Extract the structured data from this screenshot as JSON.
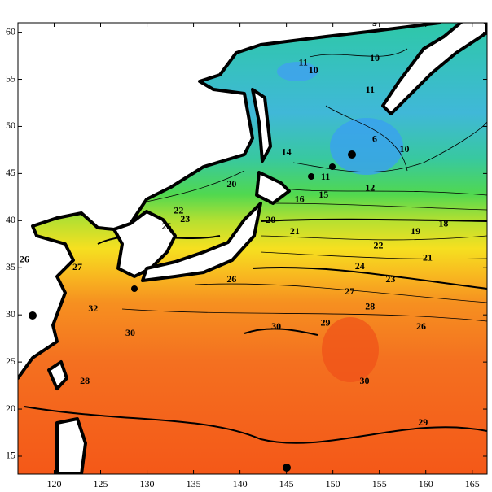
{
  "chart_data": {
    "type": "contour",
    "xlim": [
      116.1,
      166.6
    ],
    "ylim": [
      13.1,
      61
    ],
    "xticks": [
      120,
      125,
      130,
      135,
      140,
      145,
      150,
      155,
      160,
      165
    ],
    "yticks": [
      15,
      20,
      25,
      30,
      35,
      40,
      45,
      50,
      55,
      60
    ],
    "contour_labels": [
      {
        "value": 9,
        "lon": 154.5,
        "lat": 60.9
      },
      {
        "value": 10,
        "lon": 154.5,
        "lat": 57.2
      },
      {
        "value": 11,
        "lon": 146.8,
        "lat": 56.7
      },
      {
        "value": 10,
        "lon": 147.9,
        "lat": 55.9
      },
      {
        "value": 11,
        "lon": 154.0,
        "lat": 53.8
      },
      {
        "value": 6,
        "lon": 154.5,
        "lat": 48.6
      },
      {
        "value": 10,
        "lon": 157.7,
        "lat": 47.5
      },
      {
        "value": 14,
        "lon": 145.0,
        "lat": 47.2
      },
      {
        "value": 20,
        "lon": 139.1,
        "lat": 43.8
      },
      {
        "value": 11,
        "lon": 149.2,
        "lat": 44.6
      },
      {
        "value": 12,
        "lon": 154.0,
        "lat": 43.4
      },
      {
        "value": 16,
        "lon": 146.4,
        "lat": 42.2
      },
      {
        "value": 15,
        "lon": 149.0,
        "lat": 42.7
      },
      {
        "value": 22,
        "lon": 133.4,
        "lat": 41.0
      },
      {
        "value": 23,
        "lon": 134.1,
        "lat": 40.1
      },
      {
        "value": 25,
        "lon": 132.1,
        "lat": 39.3
      },
      {
        "value": 20,
        "lon": 143.3,
        "lat": 40.0
      },
      {
        "value": 21,
        "lon": 145.9,
        "lat": 38.8
      },
      {
        "value": 18,
        "lon": 161.9,
        "lat": 39.6
      },
      {
        "value": 19,
        "lon": 158.9,
        "lat": 38.8
      },
      {
        "value": 22,
        "lon": 154.9,
        "lat": 37.3
      },
      {
        "value": 21,
        "lon": 160.2,
        "lat": 36.0
      },
      {
        "value": 24,
        "lon": 152.9,
        "lat": 35.1
      },
      {
        "value": 23,
        "lon": 156.2,
        "lat": 33.7
      },
      {
        "value": 26,
        "lon": 139.1,
        "lat": 33.7
      },
      {
        "value": 27,
        "lon": 151.8,
        "lat": 32.4
      },
      {
        "value": 28,
        "lon": 154.0,
        "lat": 30.8
      },
      {
        "value": 26,
        "lon": 159.5,
        "lat": 28.7
      },
      {
        "value": 29,
        "lon": 149.2,
        "lat": 29.1
      },
      {
        "value": 30,
        "lon": 143.9,
        "lat": 28.7
      },
      {
        "value": 30,
        "lon": 153.4,
        "lat": 22.9
      },
      {
        "value": 27,
        "lon": 122.5,
        "lat": 35.0
      },
      {
        "value": 26,
        "lon": 116.8,
        "lat": 35.8
      },
      {
        "value": 32,
        "lon": 124.2,
        "lat": 30.6
      },
      {
        "value": 30,
        "lon": 128.2,
        "lat": 28.0
      },
      {
        "value": 28,
        "lon": 123.3,
        "lat": 22.9
      },
      {
        "value": 29,
        "lon": 159.7,
        "lat": 18.5
      }
    ]
  }
}
